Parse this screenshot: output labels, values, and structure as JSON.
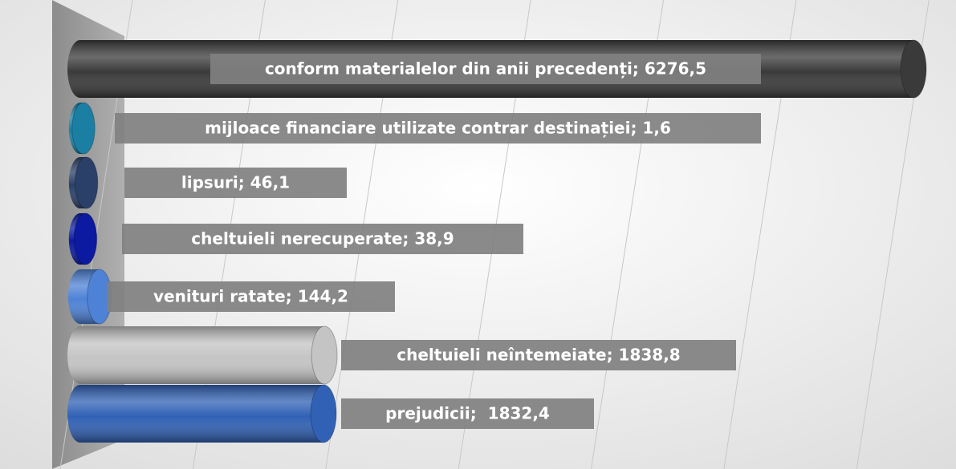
{
  "chart_data": {
    "type": "bar3d",
    "orientation": "horizontal",
    "values": [
      6276.5,
      1.6,
      46.1,
      38.9,
      144.2,
      1838.8,
      1832.4
    ],
    "value_labels": [
      "conform materialelor din anii precedenți; 6276,5",
      "mijloace financiare utilizate contrar destinației; 1,6",
      "lipsuri; 46,1",
      "cheltuieli nerecuperate; 38,9",
      "venituri ratate; 144,2",
      "cheltuieli neîntemeiate; 1838,8",
      "prejudicii;  1832,4"
    ],
    "colors": [
      "#3a3a3a",
      "#1b7fa3",
      "#2b4068",
      "#0b1aa0",
      "#4d82d6",
      "#c4c4c4",
      "#3061b5"
    ],
    "xlim": [
      0,
      6500
    ],
    "xticks": [
      0,
      1000,
      2000,
      3000,
      4000,
      5000,
      6000
    ],
    "grid": true
  }
}
